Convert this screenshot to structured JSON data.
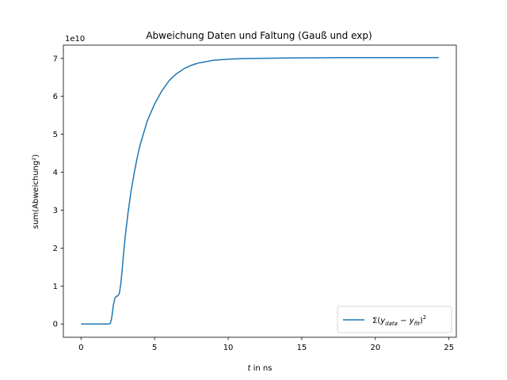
{
  "chart_data": {
    "type": "line",
    "title": "Abweichung Daten und Faltung (Gauß und exp)",
    "xlabel_italic": "t",
    "xlabel_rest": " in ns",
    "ylabel": "sum(Abweichung²)",
    "y_offset_label": "1e10",
    "xlim": [
      -1.2,
      25.5
    ],
    "ylim": [
      -0.35,
      7.35
    ],
    "x_ticks": [
      0,
      5,
      10,
      15,
      20,
      25
    ],
    "x_tick_labels": [
      "0",
      "5",
      "10",
      "15",
      "20",
      "25"
    ],
    "y_ticks": [
      0,
      1,
      2,
      3,
      4,
      5,
      6,
      7
    ],
    "y_tick_labels": [
      "0",
      "1",
      "2",
      "3",
      "4",
      "5",
      "6",
      "7"
    ],
    "grid": false,
    "legend_position": "lower-right",
    "series": [
      {
        "name": "Σ(y_data − y_fit)²",
        "legend_parts": {
          "sigma": "Σ(",
          "y1": "y",
          "sub1": "data",
          "minus": " − ",
          "y2": "y",
          "sub2": "fit",
          "close": ")",
          "sup": "2"
        },
        "color": "#1f77b4",
        "x": [
          0,
          1,
          1.9,
          2.0,
          2.1,
          2.2,
          2.3,
          2.4,
          2.5,
          2.6,
          2.7,
          2.8,
          2.9,
          3.0,
          3.2,
          3.4,
          3.6,
          3.8,
          4.0,
          4.5,
          5.0,
          5.5,
          6.0,
          6.5,
          7.0,
          7.5,
          8.0,
          9.0,
          10.0,
          11.0,
          12.0,
          14.0,
          16.0,
          18.0,
          20.0,
          22.0,
          24.3
        ],
        "y": [
          0,
          0,
          0,
          0.02,
          0.2,
          0.5,
          0.68,
          0.73,
          0.74,
          0.8,
          1.05,
          1.45,
          1.9,
          2.3,
          2.95,
          3.5,
          3.95,
          4.35,
          4.7,
          5.35,
          5.8,
          6.15,
          6.42,
          6.6,
          6.73,
          6.82,
          6.88,
          6.95,
          6.98,
          6.995,
          7.0,
          7.01,
          7.015,
          7.02,
          7.02,
          7.02,
          7.02
        ]
      }
    ]
  }
}
